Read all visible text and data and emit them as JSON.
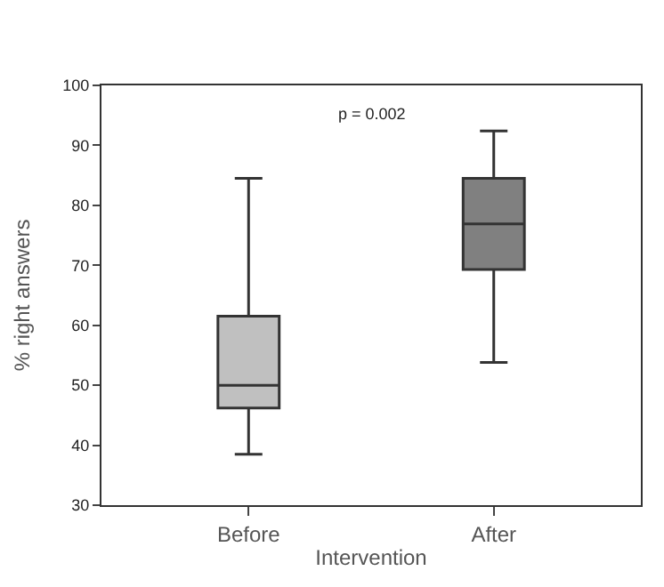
{
  "chart_data": {
    "type": "box",
    "categories": [
      "Before",
      "After"
    ],
    "boxes": [
      {
        "low": 38.5,
        "q1": 46.2,
        "median": 50,
        "q3": 61.5,
        "high": 84.5
      },
      {
        "low": 53.8,
        "q1": 69.3,
        "median": 76.9,
        "q3": 84.5,
        "high": 92.4
      }
    ],
    "colors": [
      "#c0c0c0",
      "#808080"
    ],
    "xlabel": "Intervention",
    "ylabel": "% right answers",
    "ylim": [
      30,
      100
    ],
    "yticks": [
      30,
      40,
      50,
      60,
      70,
      80,
      90,
      100
    ],
    "annotations": [
      "p = 0.002"
    ],
    "legend": false
  }
}
